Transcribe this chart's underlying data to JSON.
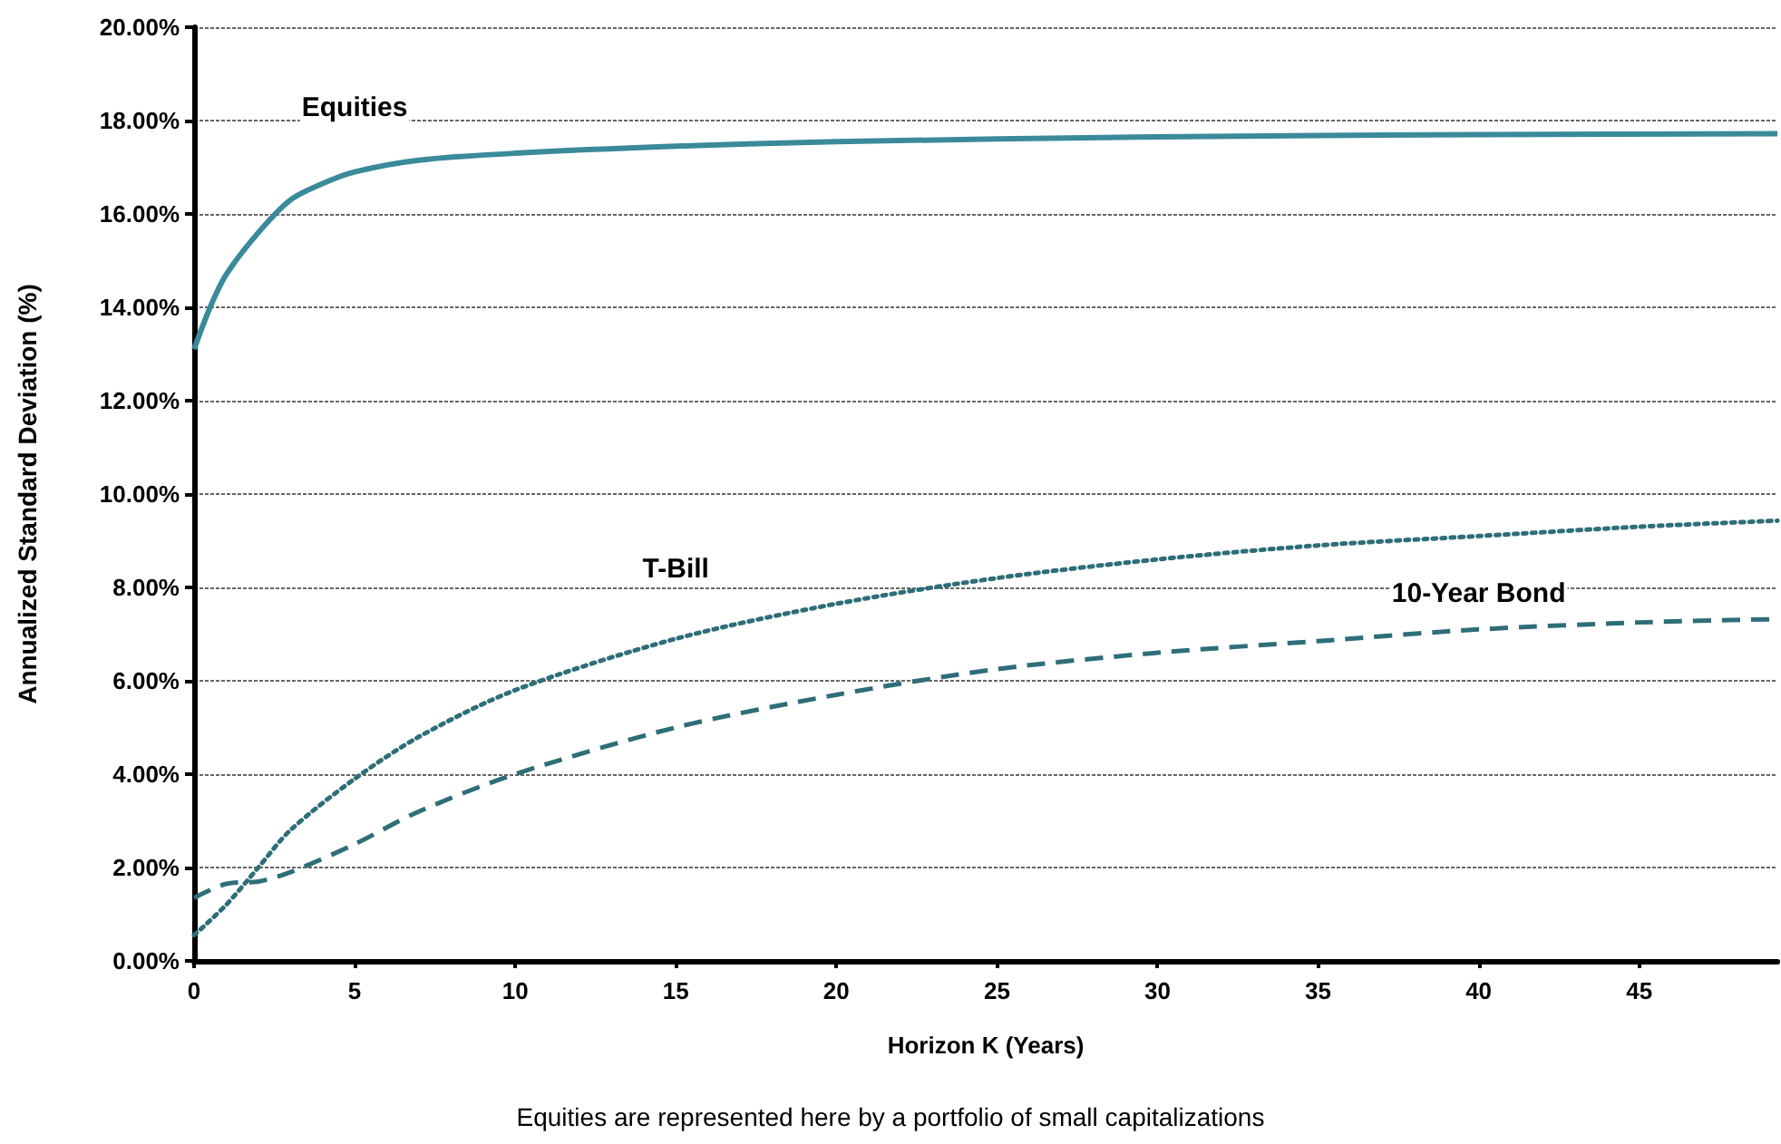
{
  "chart_data": {
    "type": "line",
    "xlabel": "Horizon K (Years)",
    "ylabel": "Annualized Standard Deviation (%)",
    "xlim": [
      0,
      49.3
    ],
    "xticks": [
      0,
      5,
      10,
      15,
      20,
      25,
      30,
      35,
      40,
      45
    ],
    "ylim": [
      0,
      20
    ],
    "yticks": [
      {
        "value": 0,
        "label": "0.00%"
      },
      {
        "value": 2,
        "label": "2.00%"
      },
      {
        "value": 4,
        "label": "4.00%"
      },
      {
        "value": 6,
        "label": "6.00%"
      },
      {
        "value": 8,
        "label": "8.00%"
      },
      {
        "value": 10,
        "label": "10.00%"
      },
      {
        "value": 12,
        "label": "12.00%"
      },
      {
        "value": 14,
        "label": "14.00%"
      },
      {
        "value": 16,
        "label": "16.00%"
      },
      {
        "value": 18,
        "label": "18.00%"
      },
      {
        "value": 20,
        "label": "20.00%"
      }
    ],
    "grid": "y",
    "marker": "none",
    "series": [
      {
        "name": "Equities",
        "color": "#3a8a9a",
        "line_style": "solid",
        "x": [
          0,
          0.5,
          1,
          2,
          3,
          4,
          5,
          7,
          10,
          15,
          20,
          30,
          40,
          49.3
        ],
        "values": [
          13.1,
          14.0,
          14.7,
          15.6,
          16.3,
          16.65,
          16.9,
          17.15,
          17.3,
          17.45,
          17.55,
          17.65,
          17.7,
          17.72
        ]
      },
      {
        "name": "T-Bill",
        "color": "#2e6e78",
        "line_style": "dotted",
        "x": [
          0,
          1,
          2,
          3,
          5,
          7,
          10,
          15,
          20,
          25,
          30,
          35,
          40,
          45,
          49.3
        ],
        "values": [
          0.55,
          1.2,
          2.0,
          2.8,
          3.9,
          4.8,
          5.8,
          6.9,
          7.65,
          8.2,
          8.6,
          8.9,
          9.1,
          9.3,
          9.43
        ]
      },
      {
        "name": "10-Year Bond",
        "color": "#2e6e78",
        "line_style": "dashed",
        "x": [
          0,
          1,
          2,
          3,
          5,
          7,
          10,
          15,
          20,
          25,
          30,
          35,
          40,
          45,
          49.3
        ],
        "values": [
          1.35,
          1.65,
          1.7,
          1.9,
          2.5,
          3.2,
          4.0,
          5.0,
          5.7,
          6.25,
          6.6,
          6.85,
          7.1,
          7.25,
          7.32
        ]
      }
    ],
    "annotations": [
      "Equities are represented here by a portfolio of small capitalizations"
    ]
  }
}
